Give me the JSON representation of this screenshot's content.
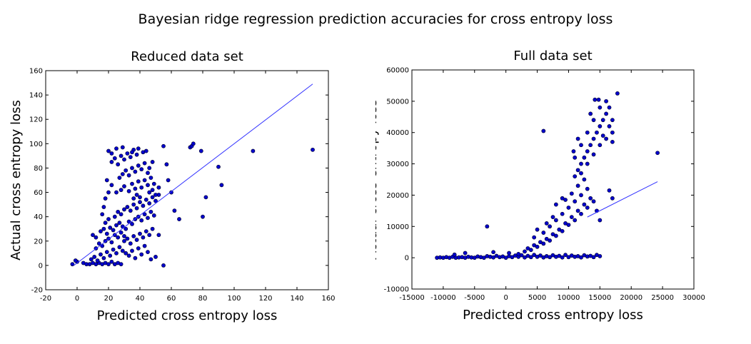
{
  "figure": {
    "title": "Bayesian ridge regression prediction accuracies for cross entropy loss"
  },
  "chart_data": [
    {
      "type": "scatter",
      "title": "Reduced data set",
      "xlabel": "Predicted cross entropy loss",
      "ylabel": "Actual cross entropy loss",
      "xlim": [
        -20,
        160
      ],
      "ylim": [
        -20,
        160
      ],
      "xticks": [
        -20,
        0,
        20,
        40,
        60,
        80,
        100,
        120,
        140,
        160
      ],
      "yticks": [
        -20,
        0,
        20,
        40,
        60,
        80,
        100,
        120,
        140,
        160
      ],
      "grid": false,
      "marker_color": "#0000cc",
      "line_color": "#3333ff",
      "fit_line": {
        "x": [
          -2,
          150
        ],
        "y": [
          0,
          149
        ]
      },
      "cluster_notes": "dense cloud roughly x 8-52, y 0-95",
      "points": [
        [
          -3,
          1
        ],
        [
          0,
          3
        ],
        [
          -1,
          4
        ],
        [
          4,
          2
        ],
        [
          6,
          1
        ],
        [
          8,
          1
        ],
        [
          10,
          2
        ],
        [
          12,
          1
        ],
        [
          14,
          2
        ],
        [
          16,
          1
        ],
        [
          18,
          2
        ],
        [
          20,
          1
        ],
        [
          22,
          3
        ],
        [
          24,
          1
        ],
        [
          26,
          2
        ],
        [
          28,
          1
        ],
        [
          9,
          5
        ],
        [
          11,
          7
        ],
        [
          13,
          4
        ],
        [
          15,
          9
        ],
        [
          17,
          6
        ],
        [
          19,
          11
        ],
        [
          21,
          8
        ],
        [
          23,
          13
        ],
        [
          25,
          10
        ],
        [
          27,
          15
        ],
        [
          29,
          12
        ],
        [
          12,
          14
        ],
        [
          14,
          18
        ],
        [
          16,
          16
        ],
        [
          18,
          20
        ],
        [
          20,
          22
        ],
        [
          22,
          19
        ],
        [
          24,
          25
        ],
        [
          26,
          23
        ],
        [
          28,
          27
        ],
        [
          30,
          24
        ],
        [
          10,
          25
        ],
        [
          12,
          23
        ],
        [
          15,
          28
        ],
        [
          17,
          30
        ],
        [
          19,
          26
        ],
        [
          21,
          31
        ],
        [
          23,
          29
        ],
        [
          25,
          33
        ],
        [
          27,
          35
        ],
        [
          29,
          32
        ],
        [
          31,
          30
        ],
        [
          33,
          36
        ],
        [
          35,
          34
        ],
        [
          37,
          38
        ],
        [
          39,
          40
        ],
        [
          41,
          37
        ],
        [
          43,
          42
        ],
        [
          45,
          39
        ],
        [
          47,
          44
        ],
        [
          49,
          41
        ],
        [
          30,
          20
        ],
        [
          32,
          22
        ],
        [
          34,
          18
        ],
        [
          36,
          24
        ],
        [
          38,
          21
        ],
        [
          40,
          26
        ],
        [
          42,
          23
        ],
        [
          44,
          28
        ],
        [
          46,
          25
        ],
        [
          48,
          30
        ],
        [
          31,
          10
        ],
        [
          33,
          8
        ],
        [
          35,
          12
        ],
        [
          37,
          6
        ],
        [
          39,
          14
        ],
        [
          41,
          9
        ],
        [
          43,
          16
        ],
        [
          45,
          11
        ],
        [
          47,
          5
        ],
        [
          50,
          7
        ],
        [
          24,
          40
        ],
        [
          26,
          44
        ],
        [
          28,
          42
        ],
        [
          30,
          46
        ],
        [
          32,
          48
        ],
        [
          34,
          45
        ],
        [
          36,
          50
        ],
        [
          38,
          47
        ],
        [
          40,
          52
        ],
        [
          42,
          49
        ],
        [
          44,
          54
        ],
        [
          46,
          51
        ],
        [
          48,
          56
        ],
        [
          50,
          53
        ],
        [
          52,
          58
        ],
        [
          36,
          55
        ],
        [
          38,
          58
        ],
        [
          40,
          56
        ],
        [
          25,
          60
        ],
        [
          28,
          62
        ],
        [
          30,
          65
        ],
        [
          33,
          61
        ],
        [
          35,
          67
        ],
        [
          37,
          63
        ],
        [
          39,
          69
        ],
        [
          41,
          64
        ],
        [
          43,
          70
        ],
        [
          45,
          66
        ],
        [
          27,
          72
        ],
        [
          29,
          75
        ],
        [
          31,
          78
        ],
        [
          33,
          74
        ],
        [
          35,
          80
        ],
        [
          37,
          77
        ],
        [
          39,
          82
        ],
        [
          41,
          79
        ],
        [
          43,
          84
        ],
        [
          45,
          76
        ],
        [
          22,
          85
        ],
        [
          24,
          88
        ],
        [
          26,
          83
        ],
        [
          28,
          90
        ],
        [
          30,
          87
        ],
        [
          32,
          92
        ],
        [
          34,
          89
        ],
        [
          36,
          95
        ],
        [
          38,
          91
        ],
        [
          42,
          93
        ],
        [
          20,
          94
        ],
        [
          22,
          92
        ],
        [
          25,
          96
        ],
        [
          29,
          97
        ],
        [
          35,
          93
        ],
        [
          39,
          96
        ],
        [
          44,
          94
        ],
        [
          18,
          35
        ],
        [
          20,
          38
        ],
        [
          16,
          42
        ],
        [
          18,
          55
        ],
        [
          20,
          60
        ],
        [
          22,
          66
        ],
        [
          17,
          48
        ],
        [
          19,
          70
        ],
        [
          46,
          60
        ],
        [
          48,
          62
        ],
        [
          50,
          58
        ],
        [
          52,
          64
        ],
        [
          47,
          72
        ],
        [
          49,
          67
        ],
        [
          46,
          80
        ],
        [
          48,
          85
        ],
        [
          55,
          98
        ],
        [
          57,
          83
        ],
        [
          58,
          70
        ],
        [
          60,
          60
        ],
        [
          62,
          45
        ],
        [
          65,
          38
        ],
        [
          55,
          0
        ],
        [
          52,
          25
        ],
        [
          72,
          97
        ],
        [
          73,
          98
        ],
        [
          74,
          100
        ],
        [
          79,
          94
        ],
        [
          80,
          40
        ],
        [
          82,
          56
        ],
        [
          90,
          81
        ],
        [
          92,
          66
        ],
        [
          112,
          94
        ],
        [
          150,
          95
        ]
      ]
    },
    {
      "type": "scatter",
      "title": "Full data set",
      "xlabel": "Predicted cross entropy loss",
      "ylabel": "Actual cross entropy loss",
      "xlim": [
        -15000,
        30000
      ],
      "ylim": [
        -10000,
        60000
      ],
      "xticks": [
        -15000,
        -10000,
        -5000,
        0,
        5000,
        10000,
        15000,
        20000,
        25000,
        30000
      ],
      "yticks": [
        -10000,
        0,
        10000,
        20000,
        30000,
        40000,
        50000,
        60000
      ],
      "grid": false,
      "marker_color": "#0000cc",
      "line_color": "#3333ff",
      "fit_line": {
        "x": [
          13000,
          24200
        ],
        "y": [
          13000,
          24300
        ]
      },
      "cluster_notes": "flat band near y=0 for x -11000..15000, rising plume x 4000..15000, upper cluster x 11000..17000 y 25000..52000",
      "points": [
        [
          -11000,
          0
        ],
        [
          -10500,
          100
        ],
        [
          -10000,
          0
        ],
        [
          -9500,
          200
        ],
        [
          -9000,
          0
        ],
        [
          -8500,
          300
        ],
        [
          -8000,
          0
        ],
        [
          -7500,
          100
        ],
        [
          -7000,
          200
        ],
        [
          -6500,
          0
        ],
        [
          -6000,
          300
        ],
        [
          -5500,
          100
        ],
        [
          -5000,
          0
        ],
        [
          -4500,
          400
        ],
        [
          -4000,
          200
        ],
        [
          -3500,
          0
        ],
        [
          -3000,
          500
        ],
        [
          -2500,
          300
        ],
        [
          -2000,
          100
        ],
        [
          -1500,
          600
        ],
        [
          -1000,
          200
        ],
        [
          -500,
          400
        ],
        [
          0,
          0
        ],
        [
          500,
          500
        ],
        [
          1000,
          200
        ],
        [
          1500,
          700
        ],
        [
          2000,
          300
        ],
        [
          2500,
          800
        ],
        [
          3000,
          100
        ],
        [
          3500,
          600
        ],
        [
          4000,
          200
        ],
        [
          4500,
          900
        ],
        [
          5000,
          300
        ],
        [
          5500,
          700
        ],
        [
          6000,
          100
        ],
        [
          6500,
          500
        ],
        [
          7000,
          200
        ],
        [
          7500,
          800
        ],
        [
          8000,
          300
        ],
        [
          8500,
          600
        ],
        [
          9000,
          100
        ],
        [
          9500,
          900
        ],
        [
          10000,
          200
        ],
        [
          10500,
          700
        ],
        [
          11000,
          300
        ],
        [
          11500,
          500
        ],
        [
          12000,
          100
        ],
        [
          12500,
          800
        ],
        [
          13000,
          400
        ],
        [
          13500,
          600
        ],
        [
          14000,
          200
        ],
        [
          14500,
          900
        ],
        [
          15000,
          500
        ],
        [
          -6500,
          1500
        ],
        [
          -8200,
          1000
        ],
        [
          -3000,
          10000
        ],
        [
          -2000,
          1800
        ],
        [
          500,
          1500
        ],
        [
          2000,
          1200
        ],
        [
          3000,
          2000
        ],
        [
          3500,
          3000
        ],
        [
          4000,
          2500
        ],
        [
          4500,
          4000
        ],
        [
          5000,
          3500
        ],
        [
          5500,
          5000
        ],
        [
          6000,
          4500
        ],
        [
          6500,
          6000
        ],
        [
          7000,
          5500
        ],
        [
          7500,
          7500
        ],
        [
          8000,
          7000
        ],
        [
          8500,
          9000
        ],
        [
          9000,
          8500
        ],
        [
          9500,
          11000
        ],
        [
          10000,
          10500
        ],
        [
          10500,
          13000
        ],
        [
          11000,
          12000
        ],
        [
          11500,
          15000
        ],
        [
          12000,
          14000
        ],
        [
          12500,
          17000
        ],
        [
          13000,
          16000
        ],
        [
          13500,
          19000
        ],
        [
          14000,
          18000
        ],
        [
          14500,
          15000
        ],
        [
          15000,
          12000
        ],
        [
          6000,
          8000
        ],
        [
          7000,
          10000
        ],
        [
          8000,
          12000
        ],
        [
          9000,
          14000
        ],
        [
          10000,
          16000
        ],
        [
          11000,
          18000
        ],
        [
          12000,
          20000
        ],
        [
          13000,
          22000
        ],
        [
          9500,
          18500
        ],
        [
          10500,
          20500
        ],
        [
          11500,
          23000
        ],
        [
          12500,
          25000
        ],
        [
          8000,
          17000
        ],
        [
          9000,
          19000
        ],
        [
          7500,
          13000
        ],
        [
          6500,
          11000
        ],
        [
          5000,
          9000
        ],
        [
          4500,
          6500
        ],
        [
          11000,
          26000
        ],
        [
          11500,
          28000
        ],
        [
          12000,
          30000
        ],
        [
          12500,
          32000
        ],
        [
          13000,
          34000
        ],
        [
          13500,
          36000
        ],
        [
          14000,
          38000
        ],
        [
          14500,
          40000
        ],
        [
          15000,
          42000
        ],
        [
          15500,
          44000
        ],
        [
          16000,
          46000
        ],
        [
          16500,
          48000
        ],
        [
          17000,
          44000
        ],
        [
          17000,
          40000
        ],
        [
          16000,
          38000
        ],
        [
          15000,
          36000
        ],
        [
          14000,
          33000
        ],
        [
          13000,
          30000
        ],
        [
          12000,
          27000
        ],
        [
          11000,
          32000
        ],
        [
          12000,
          36000
        ],
        [
          13000,
          40000
        ],
        [
          14000,
          44000
        ],
        [
          15000,
          48000
        ],
        [
          16000,
          50000
        ],
        [
          14200,
          50500
        ],
        [
          14800,
          50500
        ],
        [
          17800,
          52500
        ],
        [
          10800,
          34000
        ],
        [
          11500,
          38000
        ],
        [
          13500,
          46000
        ],
        [
          15500,
          39000
        ],
        [
          16500,
          42000
        ],
        [
          17000,
          37000
        ],
        [
          6000,
          40500
        ],
        [
          16500,
          21500
        ],
        [
          17000,
          19000
        ],
        [
          24200,
          33500
        ]
      ]
    }
  ]
}
